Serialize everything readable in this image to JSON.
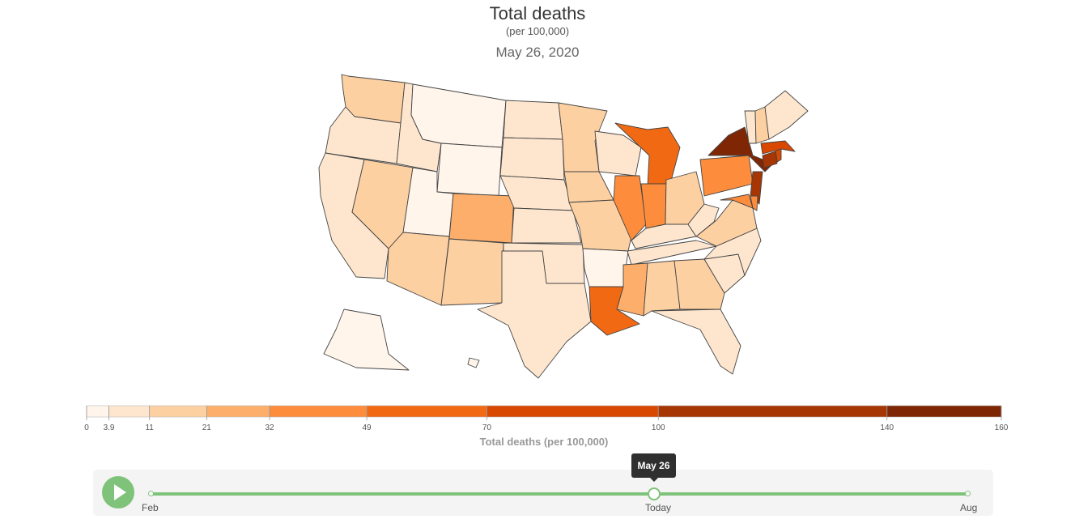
{
  "header": {
    "title": "Total deaths",
    "subtitle": "(per 100,000)",
    "date": "May 26, 2020"
  },
  "legend": {
    "title": "Total deaths (per 100,000)",
    "ticks": [
      "0",
      "3.9",
      "11",
      "21",
      "32",
      "49",
      "70",
      "100",
      "140",
      "160"
    ],
    "breaks": [
      0,
      3.9,
      11,
      21,
      32,
      49,
      70,
      100,
      140,
      160
    ],
    "colors": [
      "#fff5eb",
      "#fee6ce",
      "#fdd0a2",
      "#fdae6b",
      "#fd8d3c",
      "#f16913",
      "#d94801",
      "#a63603",
      "#7f2704"
    ]
  },
  "map_data": {
    "metric": "Total deaths (per 100,000)",
    "date": "May 26, 2020",
    "states": [
      {
        "id": "WA",
        "bin": 2
      },
      {
        "id": "OR",
        "bin": 1
      },
      {
        "id": "CA",
        "bin": 1
      },
      {
        "id": "NV",
        "bin": 2
      },
      {
        "id": "ID",
        "bin": 1
      },
      {
        "id": "MT",
        "bin": 0
      },
      {
        "id": "WY",
        "bin": 0
      },
      {
        "id": "UT",
        "bin": 0
      },
      {
        "id": "AZ",
        "bin": 2
      },
      {
        "id": "CO",
        "bin": 3
      },
      {
        "id": "NM",
        "bin": 2
      },
      {
        "id": "ND",
        "bin": 1
      },
      {
        "id": "SD",
        "bin": 1
      },
      {
        "id": "NE",
        "bin": 1
      },
      {
        "id": "KS",
        "bin": 1
      },
      {
        "id": "OK",
        "bin": 1
      },
      {
        "id": "TX",
        "bin": 1
      },
      {
        "id": "MN",
        "bin": 2
      },
      {
        "id": "IA",
        "bin": 2
      },
      {
        "id": "MO",
        "bin": 2
      },
      {
        "id": "AR",
        "bin": 0
      },
      {
        "id": "LA",
        "bin": 5
      },
      {
        "id": "WI",
        "bin": 1
      },
      {
        "id": "IL",
        "bin": 4
      },
      {
        "id": "MI",
        "bin": 5
      },
      {
        "id": "IN",
        "bin": 4
      },
      {
        "id": "OH",
        "bin": 2
      },
      {
        "id": "KY",
        "bin": 1
      },
      {
        "id": "TN",
        "bin": 1
      },
      {
        "id": "MS",
        "bin": 3
      },
      {
        "id": "AL",
        "bin": 2
      },
      {
        "id": "GA",
        "bin": 2
      },
      {
        "id": "FL",
        "bin": 1
      },
      {
        "id": "SC",
        "bin": 1
      },
      {
        "id": "NC",
        "bin": 1
      },
      {
        "id": "VA",
        "bin": 2
      },
      {
        "id": "WV",
        "bin": 1
      },
      {
        "id": "PA",
        "bin": 4
      },
      {
        "id": "NY",
        "bin": 8
      },
      {
        "id": "NJ",
        "bin": 7
      },
      {
        "id": "CT",
        "bin": 7
      },
      {
        "id": "RI",
        "bin": 6
      },
      {
        "id": "MA",
        "bin": 6
      },
      {
        "id": "VT",
        "bin": 1
      },
      {
        "id": "NH",
        "bin": 2
      },
      {
        "id": "ME",
        "bin": 1
      },
      {
        "id": "MD",
        "bin": 4
      },
      {
        "id": "DE",
        "bin": 4
      },
      {
        "id": "AK",
        "bin": 0
      },
      {
        "id": "HI",
        "bin": 0
      }
    ]
  },
  "timeline": {
    "play_icon": "play-icon",
    "start_label": "Feb",
    "current_label": "Today",
    "end_label": "Aug",
    "tooltip": "May 26",
    "position": 0.615
  },
  "colors": {
    "track": "#7fc27a",
    "border": "#444444"
  }
}
